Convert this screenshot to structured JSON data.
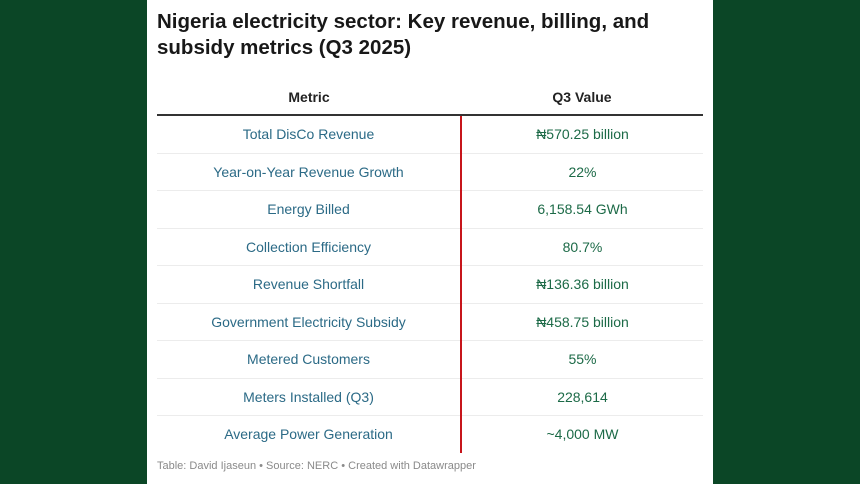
{
  "title": "Nigeria electricity sector: Key revenue, billing, and subsidy metrics (Q3 2025)",
  "table": {
    "headers": [
      "Metric",
      "Q3 Value"
    ],
    "rows": [
      {
        "metric": "Total DisCo Revenue",
        "value": "₦570.25 billion"
      },
      {
        "metric": "Year-on-Year Revenue Growth",
        "value": "22%"
      },
      {
        "metric": "Energy Billed",
        "value": "6,158.54 GWh"
      },
      {
        "metric": "Collection Efficiency",
        "value": "80.7%"
      },
      {
        "metric": "Revenue Shortfall",
        "value": "₦136.36 billion"
      },
      {
        "metric": "Government Electricity Subsidy",
        "value": "₦458.75 billion"
      },
      {
        "metric": "Metered Customers",
        "value": "55%"
      },
      {
        "metric": "Meters Installed (Q3)",
        "value": "228,614"
      },
      {
        "metric": "Average Power Generation",
        "value": "~4,000 MW"
      }
    ]
  },
  "footer": "Table: David Ijaseun • Source: NERC • Created with Datawrapper",
  "colors": {
    "background": "#0b4626",
    "metric_text": "#2b6a86",
    "value_text": "#1c6a47",
    "divider": "#c7151b"
  }
}
